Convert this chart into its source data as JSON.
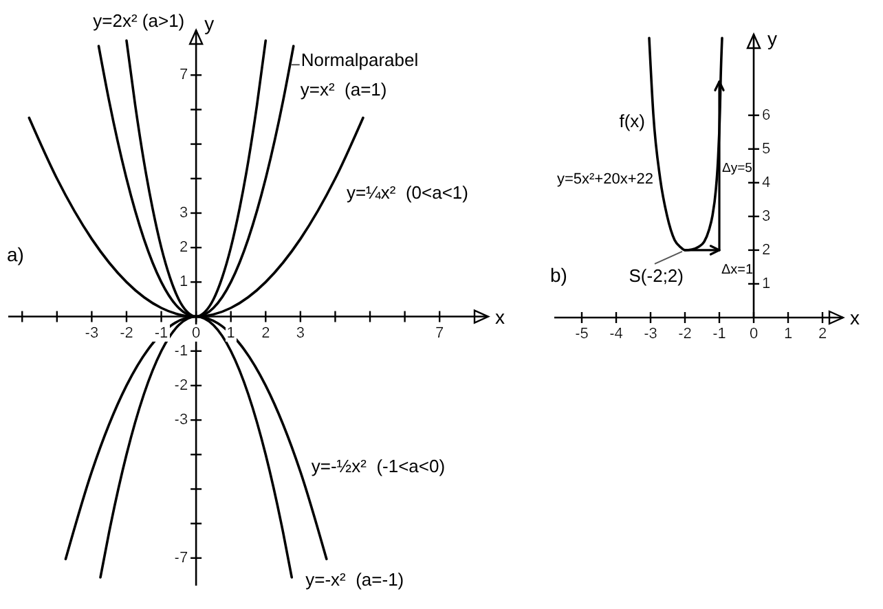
{
  "chart_data": [
    {
      "type": "line",
      "title": "a)",
      "xlabel": "x",
      "ylabel": "y",
      "xlim": [
        -5.4,
        8.4
      ],
      "ylim": [
        -7.8,
        8.3
      ],
      "xticks": [
        {
          "value": -5,
          "label": null
        },
        {
          "value": -4,
          "label": null
        },
        -3,
        -2,
        -1,
        0,
        1,
        2,
        3,
        {
          "value": 4,
          "label": null
        },
        {
          "value": 5,
          "label": null
        },
        {
          "value": 6,
          "label": null
        },
        7
      ],
      "yticks": [
        -7,
        {
          "value": -6,
          "label": null
        },
        {
          "value": -5,
          "label": null
        },
        {
          "value": -4,
          "label": null
        },
        -3,
        -2,
        -1,
        1,
        2,
        3,
        {
          "value": 4,
          "label": null
        },
        {
          "value": 5,
          "label": null
        },
        {
          "value": 6,
          "label": null
        },
        7
      ],
      "series": [
        {
          "name": "y=2x² (a>1)",
          "color": "#000000",
          "x": [
            -2,
            -1.75,
            -1.5,
            -1.25,
            -1,
            -0.75,
            -0.5,
            -0.25,
            0,
            0.25,
            0.5,
            0.75,
            1,
            1.25,
            1.5,
            1.75,
            2
          ],
          "values": [
            8,
            6.13,
            4.5,
            3.13,
            2,
            1.13,
            0.5,
            0.13,
            0,
            0.13,
            0.5,
            1.13,
            2,
            3.13,
            4.5,
            6.13,
            8
          ]
        },
        {
          "name": "y=x²  (a=1)",
          "color": "#000000",
          "x": [
            -2.8,
            -2.5,
            -2,
            -1.5,
            -1,
            -0.5,
            0,
            0.5,
            1,
            1.5,
            2,
            2.5,
            2.8
          ],
          "values": [
            7.84,
            6.25,
            4,
            2.25,
            1,
            0.25,
            0,
            0.25,
            1,
            2.25,
            4,
            6.25,
            7.84
          ]
        },
        {
          "name": "y=¼x²  (0<a<1)",
          "color": "#000000",
          "x": [
            -4.8,
            -4,
            -3,
            -2,
            -1,
            0,
            1,
            2,
            3,
            4,
            4.8
          ],
          "values": [
            5.76,
            4,
            2.25,
            1,
            0.25,
            0,
            0.25,
            1,
            2.25,
            4,
            5.76
          ]
        },
        {
          "name": "y=-½x²  (-1<a<0)",
          "color": "#000000",
          "x": [
            -3.75,
            -3,
            -2,
            -1,
            0,
            1,
            2,
            3,
            3.75
          ],
          "values": [
            -7.03,
            -4.5,
            -2,
            -0.5,
            0,
            -0.5,
            -2,
            -4.5,
            -7.03
          ]
        },
        {
          "name": "y=-x²  (a=-1)",
          "color": "#000000",
          "x": [
            -2.75,
            -2.5,
            -2,
            -1.5,
            -1,
            -0.5,
            0,
            0.5,
            1,
            1.5,
            2,
            2.5,
            2.75
          ],
          "values": [
            -7.56,
            -6.25,
            -4,
            -2.25,
            -1,
            -0.25,
            0,
            -0.25,
            -1,
            -2.25,
            -4,
            -6.25,
            -7.56
          ]
        }
      ],
      "annotations": [
        {
          "text": "Normalparabel",
          "x": 2.7,
          "y": 7.3
        }
      ]
    },
    {
      "type": "line",
      "title": "b)",
      "xlabel": "x",
      "ylabel": "y",
      "xlim": [
        -5.8,
        2.6
      ],
      "ylim": [
        0,
        8.4
      ],
      "xticks": [
        -5,
        -4,
        -3,
        -2,
        -1,
        0,
        1,
        2
      ],
      "yticks": [
        1,
        2,
        3,
        4,
        5,
        6
      ],
      "series": [
        {
          "name": "f(x)",
          "color": "#000000",
          "x": [
            -3.04,
            -2.92,
            -2.72,
            -2.52,
            -2.3,
            -2.12,
            -2,
            -1.8,
            -1.6,
            -1.44,
            -1.3,
            -1.2,
            -1.1,
            -1.04,
            -0.98,
            -0.96,
            -0.92
          ],
          "values": [
            8.29,
            6.04,
            4.12,
            3.02,
            2.3,
            2.08,
            2,
            2.02,
            2.1,
            2.25,
            2.6,
            3.02,
            3.8,
            4.65,
            6.2,
            7.1,
            8.29
          ]
        }
      ],
      "annotations": [
        "y=5x²+20x+22",
        {
          "text": "S(-2;2)",
          "x": -2,
          "y": 2
        },
        "Δx=1",
        "Δy=5"
      ]
    }
  ]
}
